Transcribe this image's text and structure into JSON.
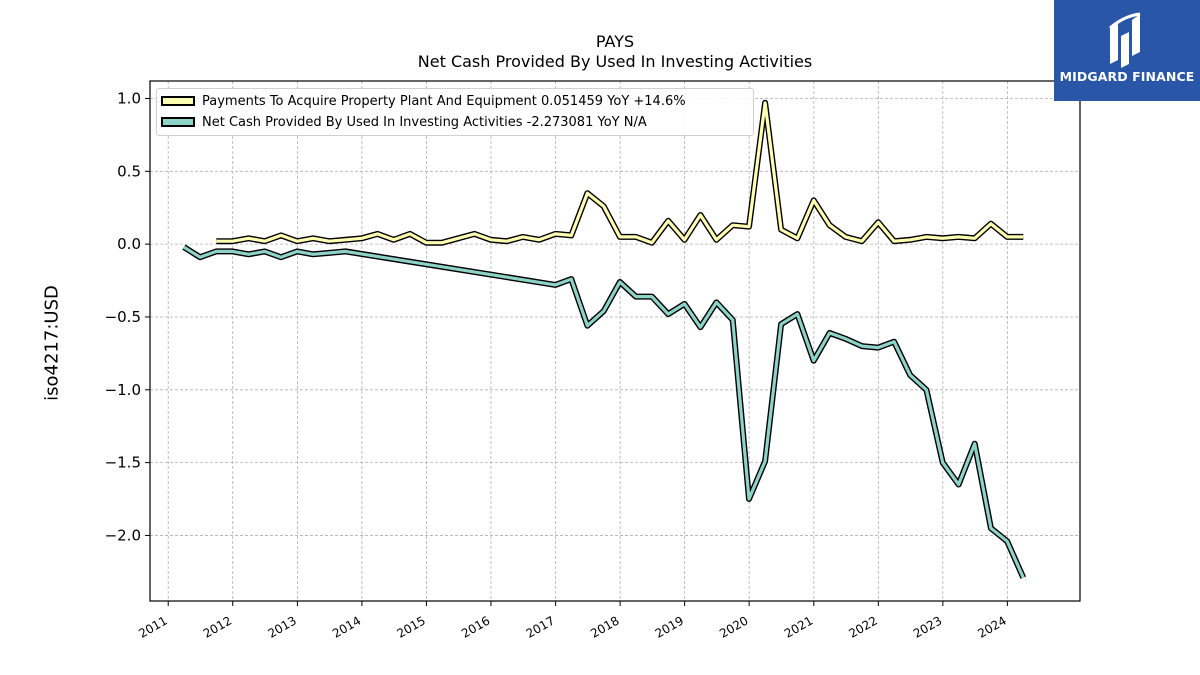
{
  "header": {
    "ticker": "PAYS",
    "subtitle": "Net Cash Provided By Used In Investing Activities"
  },
  "logo": {
    "name": "MIDGARD FINANCE",
    "icon": "midgard-logo-icon",
    "bg_color": "#2a56a8"
  },
  "chart_data": {
    "type": "line",
    "title": "PAYS",
    "subtitle": "Net Cash Provided By Used In Investing Activities",
    "ylabel": "iso4217:USD",
    "xlabel": "",
    "ylim": [
      -2.45,
      1.12
    ],
    "xlim": [
      "2010-09-20",
      "2025-02-15"
    ],
    "yticks": [
      1.0,
      0.5,
      0.0,
      -0.5,
      -1.0,
      -1.5,
      -2.0
    ],
    "ytick_labels": [
      "1.0",
      "0.5",
      "0.0",
      "−0.5",
      "−1.0",
      "−1.5",
      "−2.0"
    ],
    "xticks": [
      "2011",
      "2012",
      "2013",
      "2014",
      "2015",
      "2016",
      "2017",
      "2018",
      "2019",
      "2020",
      "2021",
      "2022",
      "2023",
      "2024"
    ],
    "grid": true,
    "legend_position": "top-left",
    "series": [
      {
        "name": "Payments To Acquire Property Plant And Equipment",
        "legend_label": "Payments To Acquire Property Plant And Equipment  0.051459 YoY +14.6%",
        "color": "#ffffb3",
        "points": [
          [
            "2011-09-30",
            0.02
          ],
          [
            "2011-12-31",
            0.02
          ],
          [
            "2012-03-31",
            0.04
          ],
          [
            "2012-06-30",
            0.02
          ],
          [
            "2012-09-30",
            0.06
          ],
          [
            "2012-12-31",
            0.02
          ],
          [
            "2013-03-31",
            0.04
          ],
          [
            "2013-06-30",
            0.02
          ],
          [
            "2013-09-30",
            0.03
          ],
          [
            "2013-12-31",
            0.04
          ],
          [
            "2014-03-31",
            0.07
          ],
          [
            "2014-06-30",
            0.03
          ],
          [
            "2014-09-30",
            0.07
          ],
          [
            "2014-12-31",
            0.01
          ],
          [
            "2015-03-31",
            0.01
          ],
          [
            "2015-06-30",
            0.04
          ],
          [
            "2015-09-30",
            0.07
          ],
          [
            "2015-12-31",
            0.03
          ],
          [
            "2016-03-31",
            0.02
          ],
          [
            "2016-06-30",
            0.05
          ],
          [
            "2016-09-30",
            0.03
          ],
          [
            "2016-12-31",
            0.07
          ],
          [
            "2017-03-31",
            0.06
          ],
          [
            "2017-06-30",
            0.35
          ],
          [
            "2017-09-30",
            0.26
          ],
          [
            "2017-12-31",
            0.05
          ],
          [
            "2018-03-31",
            0.05
          ],
          [
            "2018-06-30",
            0.01
          ],
          [
            "2018-09-30",
            0.16
          ],
          [
            "2018-12-31",
            0.03
          ],
          [
            "2019-03-31",
            0.2
          ],
          [
            "2019-06-30",
            0.03
          ],
          [
            "2019-09-30",
            0.13
          ],
          [
            "2019-12-31",
            0.12
          ],
          [
            "2020-03-31",
            0.97
          ],
          [
            "2020-06-30",
            0.1
          ],
          [
            "2020-09-30",
            0.04
          ],
          [
            "2020-12-31",
            0.3
          ],
          [
            "2021-03-31",
            0.13
          ],
          [
            "2021-06-30",
            0.05
          ],
          [
            "2021-09-30",
            0.02
          ],
          [
            "2021-12-31",
            0.15
          ],
          [
            "2022-03-31",
            0.02
          ],
          [
            "2022-06-30",
            0.03
          ],
          [
            "2022-09-30",
            0.05
          ],
          [
            "2022-12-31",
            0.04
          ],
          [
            "2023-03-31",
            0.05
          ],
          [
            "2023-06-30",
            0.04
          ],
          [
            "2023-09-30",
            0.14
          ],
          [
            "2023-12-31",
            0.05
          ],
          [
            "2024-03-31",
            0.05
          ]
        ]
      },
      {
        "name": "Net Cash Provided By Used In Investing Activities",
        "legend_label": "Net Cash Provided By Used In Investing Activities  -2.273081 YoY N/A",
        "color": "#8dd3c7",
        "points": [
          [
            "2011-03-31",
            -0.02
          ],
          [
            "2011-06-30",
            -0.09
          ],
          [
            "2011-09-30",
            -0.05
          ],
          [
            "2011-12-31",
            -0.05
          ],
          [
            "2012-03-31",
            -0.07
          ],
          [
            "2012-06-30",
            -0.05
          ],
          [
            "2012-09-30",
            -0.09
          ],
          [
            "2012-12-31",
            -0.05
          ],
          [
            "2013-03-31",
            -0.07
          ],
          [
            "2013-06-30",
            -0.06
          ],
          [
            "2013-09-30",
            -0.05
          ],
          [
            "2016-12-31",
            -0.28
          ],
          [
            "2017-03-31",
            -0.24
          ],
          [
            "2017-06-30",
            -0.56
          ],
          [
            "2017-09-30",
            -0.46
          ],
          [
            "2017-12-31",
            -0.26
          ],
          [
            "2018-03-31",
            -0.36
          ],
          [
            "2018-06-30",
            -0.36
          ],
          [
            "2018-09-30",
            -0.48
          ],
          [
            "2018-12-31",
            -0.41
          ],
          [
            "2019-03-31",
            -0.57
          ],
          [
            "2019-06-30",
            -0.4
          ],
          [
            "2019-09-30",
            -0.52
          ],
          [
            "2019-12-31",
            -1.75
          ],
          [
            "2020-03-31",
            -1.49
          ],
          [
            "2020-06-30",
            -0.55
          ],
          [
            "2020-09-30",
            -0.48
          ],
          [
            "2020-12-31",
            -0.8
          ],
          [
            "2021-03-31",
            -0.61
          ],
          [
            "2021-06-30",
            -0.65
          ],
          [
            "2021-09-30",
            -0.7
          ],
          [
            "2021-12-31",
            -0.71
          ],
          [
            "2022-03-31",
            -0.67
          ],
          [
            "2022-06-30",
            -0.9
          ],
          [
            "2022-09-30",
            -1.0
          ],
          [
            "2022-12-31",
            -1.5
          ],
          [
            "2023-03-31",
            -1.65
          ],
          [
            "2023-06-30",
            -1.37
          ],
          [
            "2023-09-30",
            -1.95
          ],
          [
            "2023-12-31",
            -2.04
          ],
          [
            "2024-03-31",
            -2.29
          ]
        ]
      }
    ]
  }
}
